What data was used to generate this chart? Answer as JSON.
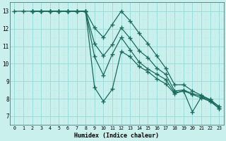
{
  "xlabel": "Humidex (Indice chaleur)",
  "bg_color": "#caf0ed",
  "grid_major_color": "#99ddda",
  "grid_minor_color": "#bbeeeb",
  "line_color": "#1a6b5e",
  "xlim": [
    -0.5,
    23.5
  ],
  "ylim": [
    6.5,
    13.5
  ],
  "yticks": [
    7,
    8,
    9,
    10,
    11,
    12,
    13
  ],
  "xticks": [
    0,
    1,
    2,
    3,
    4,
    5,
    6,
    7,
    8,
    9,
    10,
    11,
    12,
    13,
    14,
    15,
    16,
    17,
    18,
    19,
    20,
    21,
    22,
    23
  ],
  "lines": [
    {
      "x": [
        0,
        1,
        2,
        3,
        4,
        5,
        6,
        7,
        8,
        9,
        10,
        11,
        12,
        13,
        14,
        15,
        16,
        17,
        18,
        19,
        20,
        21,
        22,
        23
      ],
      "y": [
        13,
        13,
        13,
        13,
        13,
        13,
        13,
        13,
        13,
        8.65,
        7.85,
        8.55,
        10.7,
        10.4,
        9.85,
        9.55,
        9.15,
        8.85,
        8.3,
        8.45,
        7.25,
        8.1,
        7.9,
        7.45
      ]
    },
    {
      "x": [
        2,
        3,
        4,
        5,
        6,
        7,
        8,
        9,
        10,
        11,
        12,
        13,
        14,
        15,
        16,
        17,
        18,
        19,
        20,
        21,
        22,
        23
      ],
      "y": [
        13,
        13,
        13,
        13,
        13,
        13,
        13,
        10.4,
        9.35,
        10.55,
        11.5,
        10.8,
        10.1,
        9.7,
        9.4,
        9.1,
        8.35,
        8.45,
        8.25,
        8.05,
        7.85,
        7.45
      ]
    },
    {
      "x": [
        2,
        3,
        4,
        5,
        6,
        7,
        8,
        9,
        10,
        11,
        12,
        13,
        14,
        15,
        16,
        17,
        18,
        19,
        20,
        21,
        22,
        23
      ],
      "y": [
        13,
        13,
        13,
        13,
        13,
        13,
        13,
        11.15,
        10.45,
        11.1,
        12.05,
        11.45,
        10.75,
        10.35,
        9.75,
        9.4,
        8.45,
        8.5,
        8.3,
        8.15,
        7.95,
        7.55
      ]
    },
    {
      "x": [
        2,
        3,
        4,
        5,
        6,
        7,
        8,
        9,
        10,
        11,
        12,
        13,
        14,
        15,
        16,
        17,
        18,
        19,
        20,
        21,
        22,
        23
      ],
      "y": [
        13,
        13,
        13,
        13,
        13,
        13,
        13,
        12.05,
        11.5,
        12.25,
        13.0,
        12.45,
        11.75,
        11.15,
        10.45,
        9.75,
        8.8,
        8.8,
        8.45,
        8.2,
        7.95,
        7.55
      ]
    }
  ]
}
